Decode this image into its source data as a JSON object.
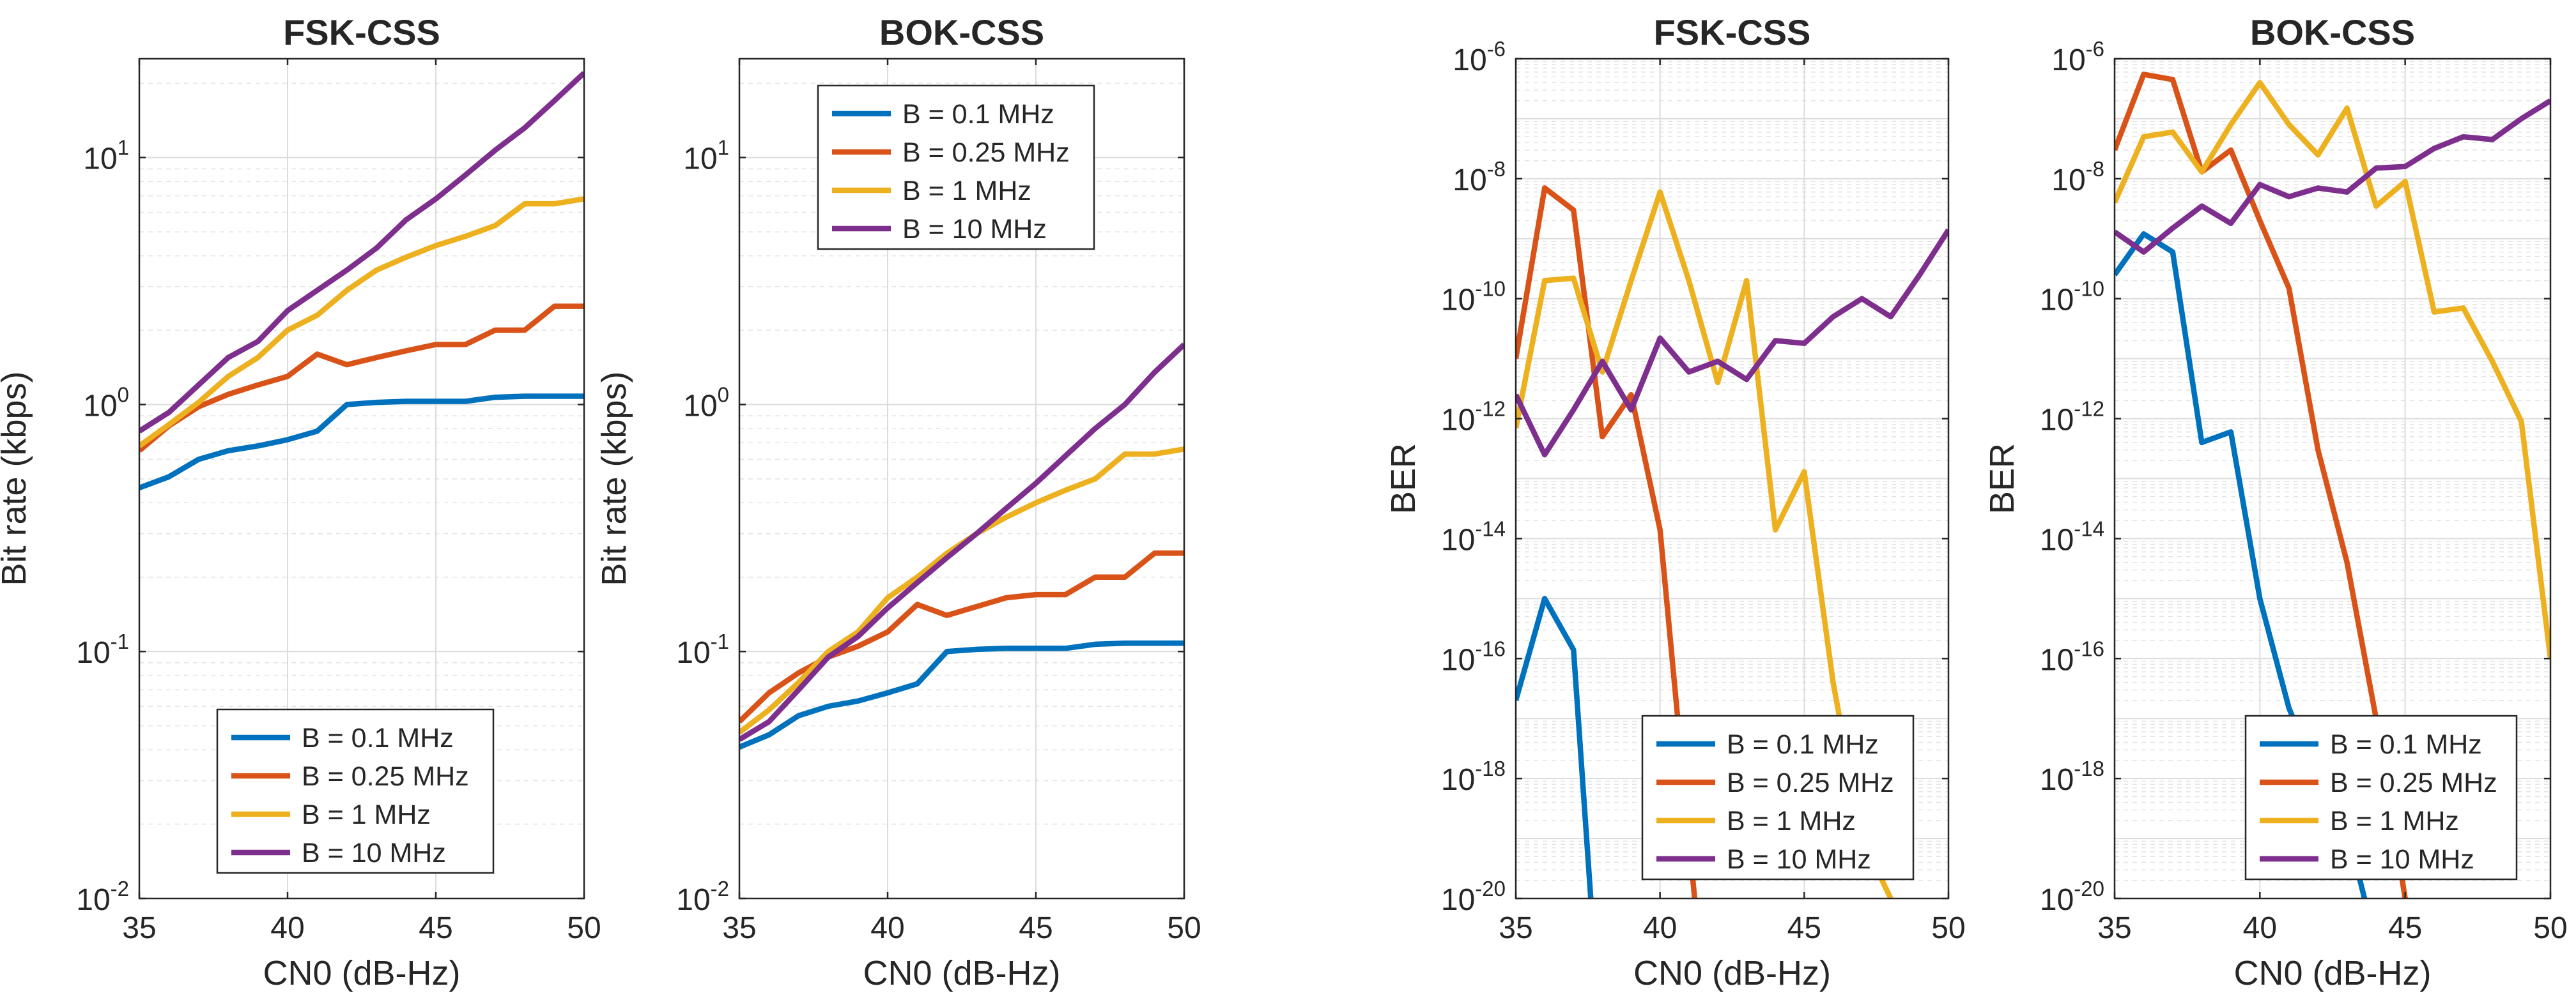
{
  "chart_data": [
    {
      "id": "p1",
      "type": "line",
      "title": "FSK-CSS",
      "xlabel": "CN0 (dB-Hz)",
      "ylabel": "Bit rate (kbps)",
      "yscale": "log",
      "xlim": [
        35,
        50
      ],
      "ylim_exp": [
        -2,
        1.4
      ],
      "xticks": [
        35,
        40,
        45,
        50
      ],
      "ytick_exps": [
        -2,
        -1,
        0,
        1
      ],
      "x": [
        35,
        36,
        37,
        38,
        39,
        40,
        41,
        42,
        43,
        44,
        45,
        46,
        47,
        48,
        49,
        50
      ],
      "legend_location": "south",
      "series": [
        {
          "name": "B = 0.1 MHz",
          "color": "#0072BD",
          "values": [
            0.46,
            0.51,
            0.6,
            0.65,
            0.68,
            0.72,
            0.78,
            1.0,
            1.02,
            1.03,
            1.03,
            1.03,
            1.07,
            1.08,
            1.08,
            1.08
          ]
        },
        {
          "name": "B = 0.25 MHz",
          "color": "#D95319",
          "values": [
            0.65,
            0.82,
            0.98,
            1.1,
            1.2,
            1.3,
            1.6,
            1.45,
            1.55,
            1.65,
            1.75,
            1.75,
            2.0,
            2.0,
            2.5,
            2.5
          ]
        },
        {
          "name": "B = 1 MHz",
          "color": "#EDB120",
          "values": [
            0.68,
            0.83,
            1.02,
            1.3,
            1.55,
            2.0,
            2.3,
            2.9,
            3.5,
            3.95,
            4.4,
            4.8,
            5.3,
            6.5,
            6.5,
            6.8
          ]
        },
        {
          "name": "B = 10 MHz",
          "color": "#7E2F8E",
          "values": [
            0.78,
            0.93,
            1.2,
            1.55,
            1.8,
            2.4,
            2.9,
            3.5,
            4.3,
            5.6,
            6.8,
            8.5,
            10.7,
            13.2,
            17.0,
            22.0
          ]
        }
      ]
    },
    {
      "id": "p2",
      "type": "line",
      "title": "BOK-CSS",
      "xlabel": "CN0 (dB-Hz)",
      "ylabel": "Bit rate (kbps)",
      "yscale": "log",
      "xlim": [
        35,
        50
      ],
      "ylim_exp": [
        -2,
        1.4
      ],
      "xticks": [
        35,
        40,
        45,
        50
      ],
      "ytick_exps": [
        -2,
        -1,
        0,
        1
      ],
      "x": [
        35,
        36,
        37,
        38,
        39,
        40,
        41,
        42,
        43,
        44,
        45,
        46,
        47,
        48,
        49,
        50
      ],
      "legend_location": "north",
      "series": [
        {
          "name": "B = 0.1 MHz",
          "color": "#0072BD",
          "values": [
            0.041,
            0.046,
            0.055,
            0.06,
            0.063,
            0.068,
            0.074,
            0.1,
            0.102,
            0.103,
            0.103,
            0.103,
            0.107,
            0.108,
            0.108,
            0.108
          ]
        },
        {
          "name": "B = 0.25 MHz",
          "color": "#D95319",
          "values": [
            0.052,
            0.068,
            0.082,
            0.095,
            0.105,
            0.12,
            0.155,
            0.14,
            0.152,
            0.165,
            0.17,
            0.17,
            0.2,
            0.2,
            0.25,
            0.25
          ]
        },
        {
          "name": "B = 1 MHz",
          "color": "#EDB120",
          "values": [
            0.047,
            0.058,
            0.075,
            0.1,
            0.12,
            0.165,
            0.2,
            0.25,
            0.3,
            0.35,
            0.4,
            0.45,
            0.5,
            0.63,
            0.63,
            0.66
          ]
        },
        {
          "name": "B = 10 MHz",
          "color": "#7E2F8E",
          "values": [
            0.044,
            0.052,
            0.07,
            0.095,
            0.115,
            0.15,
            0.19,
            0.24,
            0.3,
            0.38,
            0.48,
            0.62,
            0.8,
            1.0,
            1.35,
            1.75
          ]
        }
      ]
    },
    {
      "id": "p3",
      "type": "line",
      "title": "FSK-CSS",
      "xlabel": "CN0 (dB-Hz)",
      "ylabel": "BER",
      "yscale": "log",
      "xlim": [
        35,
        50
      ],
      "ylim_exp": [
        -20,
        -6
      ],
      "xticks": [
        35,
        40,
        45,
        50
      ],
      "ytick_exps": [
        -20,
        -18,
        -16,
        -14,
        -12,
        -10,
        -8,
        -6
      ],
      "x": [
        35,
        36,
        37,
        38,
        39,
        40,
        41,
        42,
        43,
        44,
        45,
        46,
        47,
        48,
        49,
        50
      ],
      "legend_location": "south-east",
      "series": [
        {
          "name": "B = 0.1 MHz",
          "color": "#0072BD",
          "x": [
            35,
            36,
            37,
            37.6
          ],
          "values": [
            2e-17,
            1e-15,
            1.4e-16,
            1e-20
          ]
        },
        {
          "name": "B = 0.25 MHz",
          "color": "#D95319",
          "x": [
            35,
            36,
            37,
            38,
            39,
            40,
            41.2
          ],
          "values": [
            1e-11,
            7e-09,
            3e-09,
            5e-13,
            2.5e-12,
            1.4e-14,
            1e-20
          ]
        },
        {
          "name": "B = 1 MHz",
          "color": "#EDB120",
          "x": [
            35,
            36,
            37,
            38,
            39,
            40,
            41,
            42,
            43,
            44,
            45,
            46,
            47,
            48
          ],
          "values": [
            7e-13,
            2e-10,
            2.2e-10,
            6e-12,
            2e-10,
            6e-09,
            2e-10,
            4e-12,
            2e-10,
            1.4e-14,
            1.3e-13,
            4e-17,
            1e-19,
            1e-20
          ]
        },
        {
          "name": "B = 10 MHz",
          "color": "#7E2F8E",
          "values": [
            2.5e-12,
            2.5e-13,
            1.4e-12,
            9e-12,
            1.4e-12,
            2.2e-11,
            6e-12,
            9e-12,
            4.5e-12,
            2e-11,
            1.8e-11,
            5e-11,
            1e-10,
            5e-11,
            2.5e-10,
            1.4e-09
          ]
        }
      ]
    },
    {
      "id": "p4",
      "type": "line",
      "title": "BOK-CSS",
      "xlabel": "CN0 (dB-Hz)",
      "ylabel": "BER",
      "yscale": "log",
      "xlim": [
        35,
        50
      ],
      "ylim_exp": [
        -20,
        -6
      ],
      "xticks": [
        35,
        40,
        45,
        50
      ],
      "ytick_exps": [
        -20,
        -18,
        -16,
        -14,
        -12,
        -10,
        -8,
        -6
      ],
      "x": [
        35,
        36,
        37,
        38,
        39,
        40,
        41,
        42,
        43,
        44,
        45,
        46,
        47,
        48,
        49,
        50
      ],
      "legend_location": "south-east",
      "series": [
        {
          "name": "B = 0.1 MHz",
          "color": "#0072BD",
          "x": [
            35,
            36,
            37,
            38,
            39,
            40,
            41,
            42,
            43,
            43.6
          ],
          "values": [
            2.5e-10,
            1.2e-09,
            6e-10,
            4e-13,
            6e-13,
            1e-15,
            1.5e-17,
            1e-18,
            1.5e-19,
            1e-20
          ]
        },
        {
          "name": "B = 0.25 MHz",
          "color": "#D95319",
          "x": [
            35,
            36,
            37,
            38,
            39,
            40,
            41,
            42,
            43,
            44,
            45
          ],
          "values": [
            3e-08,
            5.5e-07,
            4.5e-07,
            1.3e-08,
            3e-08,
            2e-09,
            1.5e-10,
            3e-13,
            4e-15,
            1e-17,
            1e-20
          ]
        },
        {
          "name": "B = 1 MHz",
          "color": "#EDB120",
          "values": [
            4e-09,
            5e-08,
            6e-08,
            1.3e-08,
            8e-08,
            4e-07,
            8e-08,
            2.5e-08,
            1.5e-07,
            3.5e-09,
            9e-09,
            6e-11,
            7e-11,
            9e-12,
            9e-13,
            1e-16
          ]
        },
        {
          "name": "B = 10 MHz",
          "color": "#7E2F8E",
          "values": [
            1.3e-09,
            6e-10,
            1.5e-09,
            3.5e-09,
            1.8e-09,
            8e-09,
            5e-09,
            7e-09,
            6e-09,
            1.5e-08,
            1.6e-08,
            3.2e-08,
            5e-08,
            4.5e-08,
            1e-07,
            2e-07
          ]
        }
      ]
    }
  ]
}
